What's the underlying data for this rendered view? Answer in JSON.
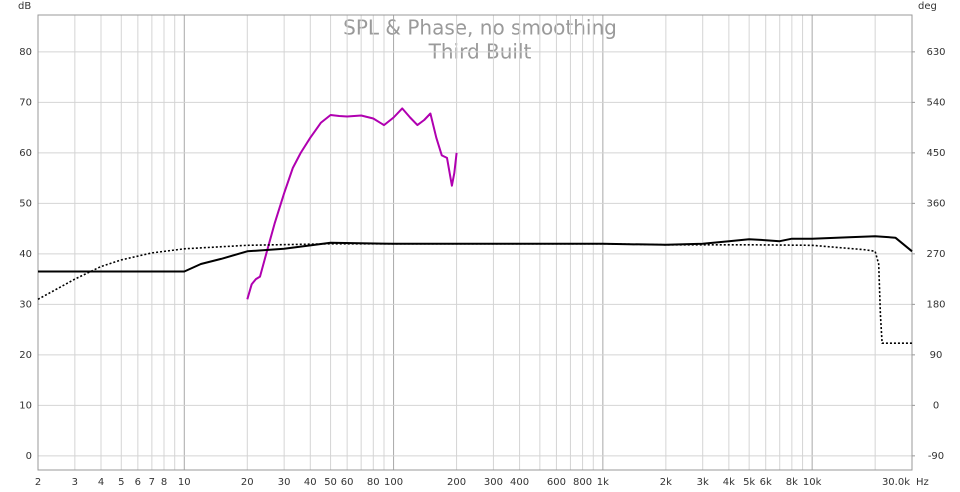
{
  "chart_data": {
    "type": "line",
    "title": "SPL & Phase, no smoothing",
    "subtitle": "Third Built",
    "x_label": "Hz",
    "y_label": "dB",
    "y2_label": "deg",
    "log_x": true,
    "grid": true,
    "xlim": [
      2,
      30000
    ],
    "xticks": [
      2,
      3,
      4,
      5,
      6,
      7,
      8,
      10,
      20,
      30,
      40,
      50,
      60,
      80,
      100,
      200,
      300,
      400,
      600,
      800,
      {
        "value": 1000,
        "label": "1k"
      },
      {
        "value": 2000,
        "label": "2k"
      },
      {
        "value": 3000,
        "label": "3k"
      },
      {
        "value": 4000,
        "label": "4k"
      },
      {
        "value": 5000,
        "label": "5k"
      },
      {
        "value": 6000,
        "label": "6k"
      },
      {
        "value": 8000,
        "label": "8k"
      },
      {
        "value": 10000,
        "label": "10k"
      },
      {
        "value": 30000,
        "label": "30.0k"
      }
    ],
    "xgrid_minor": [
      9,
      70,
      90,
      500,
      700,
      900,
      7000,
      9000,
      20000
    ],
    "ylim": [
      -2.8,
      87.3
    ],
    "yticks": [
      0,
      10,
      20,
      30,
      40,
      50,
      60,
      70,
      80
    ],
    "y2lim": [
      -115.2,
      695.7
    ],
    "y2ticks": [
      -90,
      0,
      90,
      180,
      270,
      360,
      450,
      540,
      630
    ],
    "series": [
      {
        "color": "#b000b0",
        "dash": false,
        "x": [
          20,
          21,
          22,
          23,
          25,
          27,
          30,
          33,
          36,
          40,
          45,
          50,
          55,
          60,
          70,
          80,
          90,
          100,
          110,
          120,
          130,
          140,
          150,
          160,
          170,
          180,
          190,
          195,
          200
        ],
        "values": [
          31,
          34,
          35,
          35.5,
          41,
          46,
          52,
          57,
          60,
          63,
          66,
          67.5,
          67.3,
          67.2,
          67.4,
          66.8,
          65.5,
          67,
          68.8,
          67,
          65.5,
          66.5,
          67.8,
          63,
          59.5,
          59,
          53.5,
          56,
          60
        ]
      },
      {
        "color": "#000000",
        "dash": false,
        "x": [
          2,
          10,
          12,
          15,
          20,
          30,
          50,
          100,
          1000,
          2000,
          3000,
          4000,
          5000,
          6000,
          7000,
          8000,
          10000,
          15000,
          20000,
          25000,
          30000
        ],
        "values": [
          36.5,
          36.5,
          38,
          39,
          40.5,
          41,
          42.2,
          42,
          42,
          41.8,
          42,
          42.5,
          42.9,
          42.7,
          42.5,
          43,
          43,
          43.3,
          43.5,
          43.2,
          40.5
        ]
      },
      {
        "color": "#000000",
        "dash": true,
        "x": [
          2,
          3,
          4,
          5,
          7,
          10,
          20,
          50,
          1000,
          2000,
          5000,
          10000,
          18000,
          20000,
          20800,
          21200,
          21600,
          30000
        ],
        "values": [
          31,
          35,
          37.5,
          38.8,
          40.2,
          41,
          41.7,
          42,
          42,
          41.8,
          41.8,
          41.7,
          40.8,
          40.5,
          38,
          28,
          22.3,
          22.3
        ]
      }
    ]
  }
}
